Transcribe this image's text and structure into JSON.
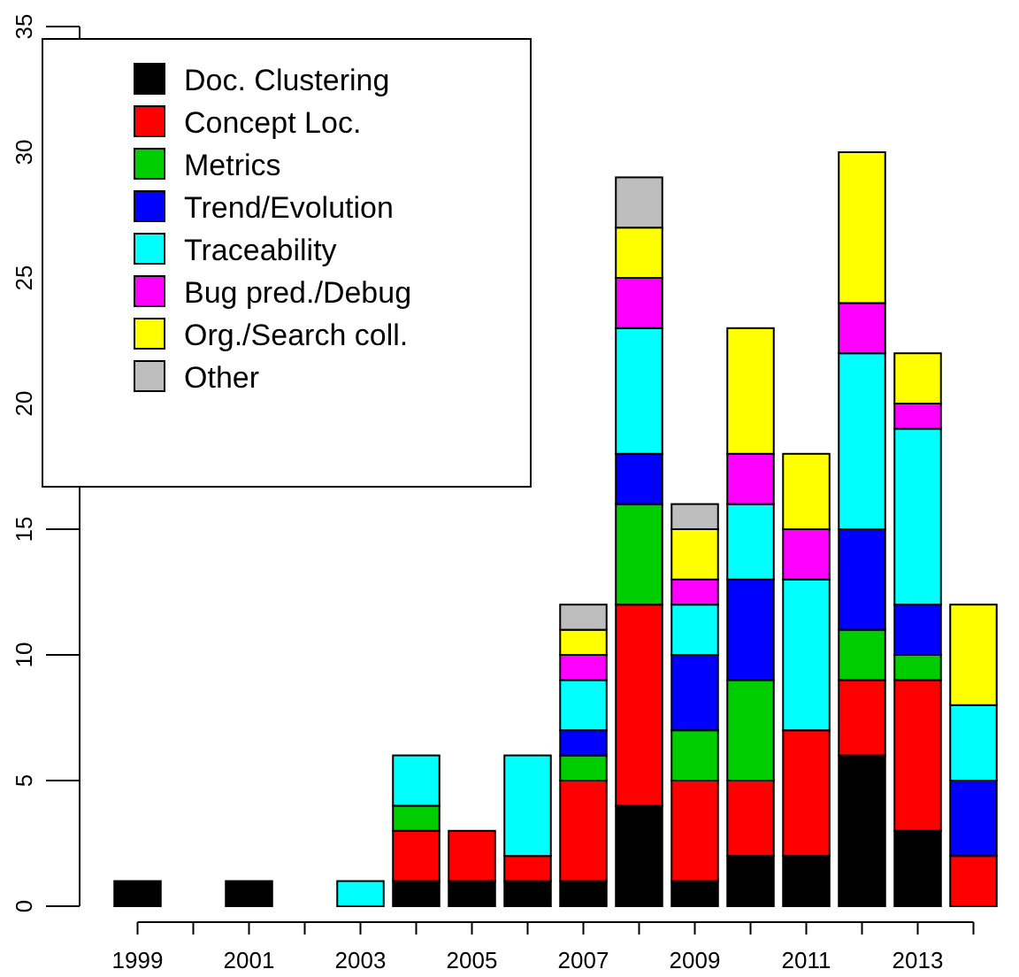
{
  "chart_data": {
    "type": "bar",
    "stacked": true,
    "categories": [
      "1999",
      null,
      "2001",
      null,
      "2003",
      null,
      "2005",
      null,
      "2007",
      null,
      "2009",
      null,
      "2011",
      null,
      "2013",
      null
    ],
    "series": [
      {
        "name": "Doc. Clustering",
        "color": "#000000",
        "values": [
          1,
          0,
          1,
          0,
          0,
          1,
          1,
          1,
          1,
          4,
          1,
          2,
          2,
          6,
          3,
          0
        ]
      },
      {
        "name": "Concept Loc.",
        "color": "#ff0000",
        "values": [
          0,
          0,
          0,
          0,
          0,
          2,
          2,
          1,
          4,
          8,
          4,
          3,
          5,
          3,
          6,
          2
        ]
      },
      {
        "name": "Metrics",
        "color": "#00cd00",
        "values": [
          0,
          0,
          0,
          0,
          0,
          1,
          0,
          0,
          1,
          4,
          2,
          4,
          0,
          2,
          1,
          0
        ]
      },
      {
        "name": "Trend/Evolution",
        "color": "#0000ff",
        "values": [
          0,
          0,
          0,
          0,
          0,
          0,
          0,
          0,
          1,
          2,
          3,
          4,
          0,
          4,
          2,
          3
        ]
      },
      {
        "name": "Traceability",
        "color": "#00ffff",
        "values": [
          0,
          0,
          0,
          0,
          1,
          2,
          0,
          4,
          2,
          5,
          2,
          3,
          6,
          7,
          7,
          3
        ]
      },
      {
        "name": "Bug pred./Debug",
        "color": "#ff00ff",
        "values": [
          0,
          0,
          0,
          0,
          0,
          0,
          0,
          0,
          1,
          2,
          1,
          2,
          2,
          2,
          1,
          0
        ]
      },
      {
        "name": "Org./Search coll.",
        "color": "#ffff00",
        "values": [
          0,
          0,
          0,
          0,
          0,
          0,
          0,
          0,
          1,
          2,
          2,
          5,
          3,
          6,
          2,
          4
        ]
      },
      {
        "name": "Other",
        "color": "#bebebe",
        "values": [
          0,
          0,
          0,
          0,
          0,
          0,
          0,
          0,
          1,
          2,
          1,
          0,
          0,
          0,
          0,
          0
        ]
      }
    ],
    "ylim": [
      0,
      35
    ],
    "yticks": [
      0,
      5,
      10,
      15,
      20,
      25,
      30,
      35
    ],
    "legend": "top left"
  }
}
